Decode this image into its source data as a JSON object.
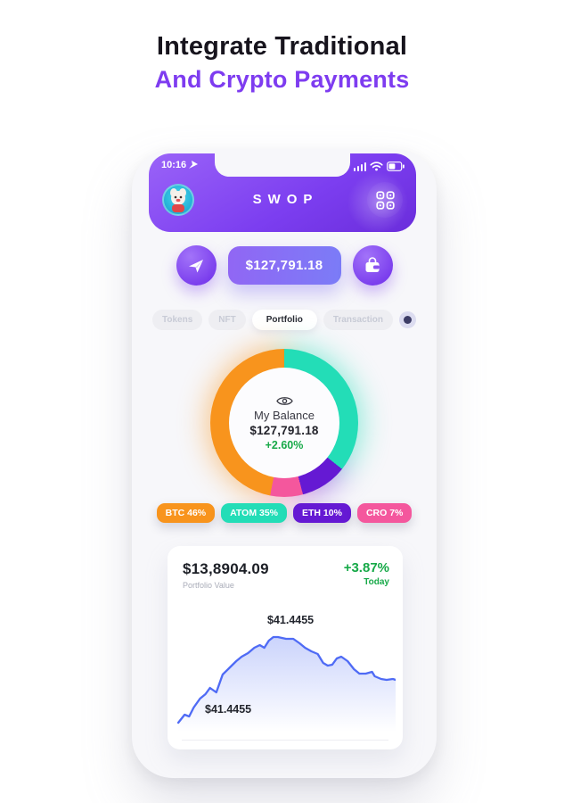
{
  "hero": {
    "title_line1": "Integrate Traditional",
    "title_line2": "And Crypto Payments"
  },
  "colors": {
    "title_purple": "#7E3CF0",
    "green": "#17A948",
    "chart_blue": "#4F6BF5"
  },
  "status_bar": {
    "time": "10:16"
  },
  "app_header": {
    "title": "SWOP"
  },
  "balance_bar": {
    "amount": "$127,791.18"
  },
  "tabs": [
    {
      "label": "Tokens",
      "active": false
    },
    {
      "label": "NFT",
      "active": false
    },
    {
      "label": "Portfolio",
      "active": true
    },
    {
      "label": "Transaction",
      "active": false
    }
  ],
  "donut_center": {
    "label": "My Balance",
    "amount": "$127,791.18",
    "change": "+2.60%"
  },
  "legend": [
    {
      "label": "BTC 46%",
      "color": "#F8941D"
    },
    {
      "label": "ATOM 35%",
      "color": "#23DDB7"
    },
    {
      "label": "ETH 10%",
      "color": "#6519D3"
    },
    {
      "label": "CRO 7%",
      "color": "#F4579D"
    }
  ],
  "portfolio_card": {
    "value": "$13,8904.09",
    "caption": "Portfolio Value",
    "change": "+3.87%",
    "change_caption": "Today",
    "peak_label": "$41.4455",
    "low_label": "$41.4455"
  },
  "chart_data": [
    {
      "type": "pie",
      "title": "Asset allocation donut",
      "labels": [
        "ATOM",
        "ETH",
        "CRO",
        "BTC"
      ],
      "values": [
        35,
        10,
        7,
        46
      ],
      "colors": [
        "#23DDB7",
        "#6519D3",
        "#F4579D",
        "#F8941D"
      ],
      "center": {
        "label": "My Balance",
        "value": "$127,791.18",
        "change": "+2.60%"
      },
      "legend_position": "below",
      "legend_labels": [
        "BTC 46%",
        "ATOM 35%",
        "ETH 10%",
        "CRO 7%"
      ]
    },
    {
      "type": "line",
      "title": "Portfolio value trend",
      "color": "#4F6BF5",
      "annotations": [
        "$41.4455 near peak",
        "$41.4455 near start"
      ],
      "grid": false,
      "points": [
        [
          6,
          122
        ],
        [
          13,
          113
        ],
        [
          18,
          115
        ],
        [
          23,
          105
        ],
        [
          30,
          95
        ],
        [
          36,
          90
        ],
        [
          41,
          83
        ],
        [
          48,
          88
        ],
        [
          55,
          68
        ],
        [
          63,
          60
        ],
        [
          70,
          53
        ],
        [
          76,
          48
        ],
        [
          83,
          44
        ],
        [
          90,
          38
        ],
        [
          96,
          35
        ],
        [
          101,
          38
        ],
        [
          106,
          30
        ],
        [
          111,
          26
        ],
        [
          116,
          26
        ],
        [
          125,
          28
        ],
        [
          133,
          28
        ],
        [
          140,
          33
        ],
        [
          146,
          38
        ],
        [
          153,
          42
        ],
        [
          160,
          45
        ],
        [
          166,
          55
        ],
        [
          171,
          58
        ],
        [
          176,
          57
        ],
        [
          181,
          50
        ],
        [
          186,
          48
        ],
        [
          193,
          53
        ],
        [
          200,
          62
        ],
        [
          206,
          67
        ],
        [
          213,
          67
        ],
        [
          220,
          65
        ],
        [
          223,
          70
        ],
        [
          230,
          73
        ],
        [
          236,
          74
        ],
        [
          243,
          73
        ],
        [
          246,
          74
        ]
      ]
    }
  ]
}
